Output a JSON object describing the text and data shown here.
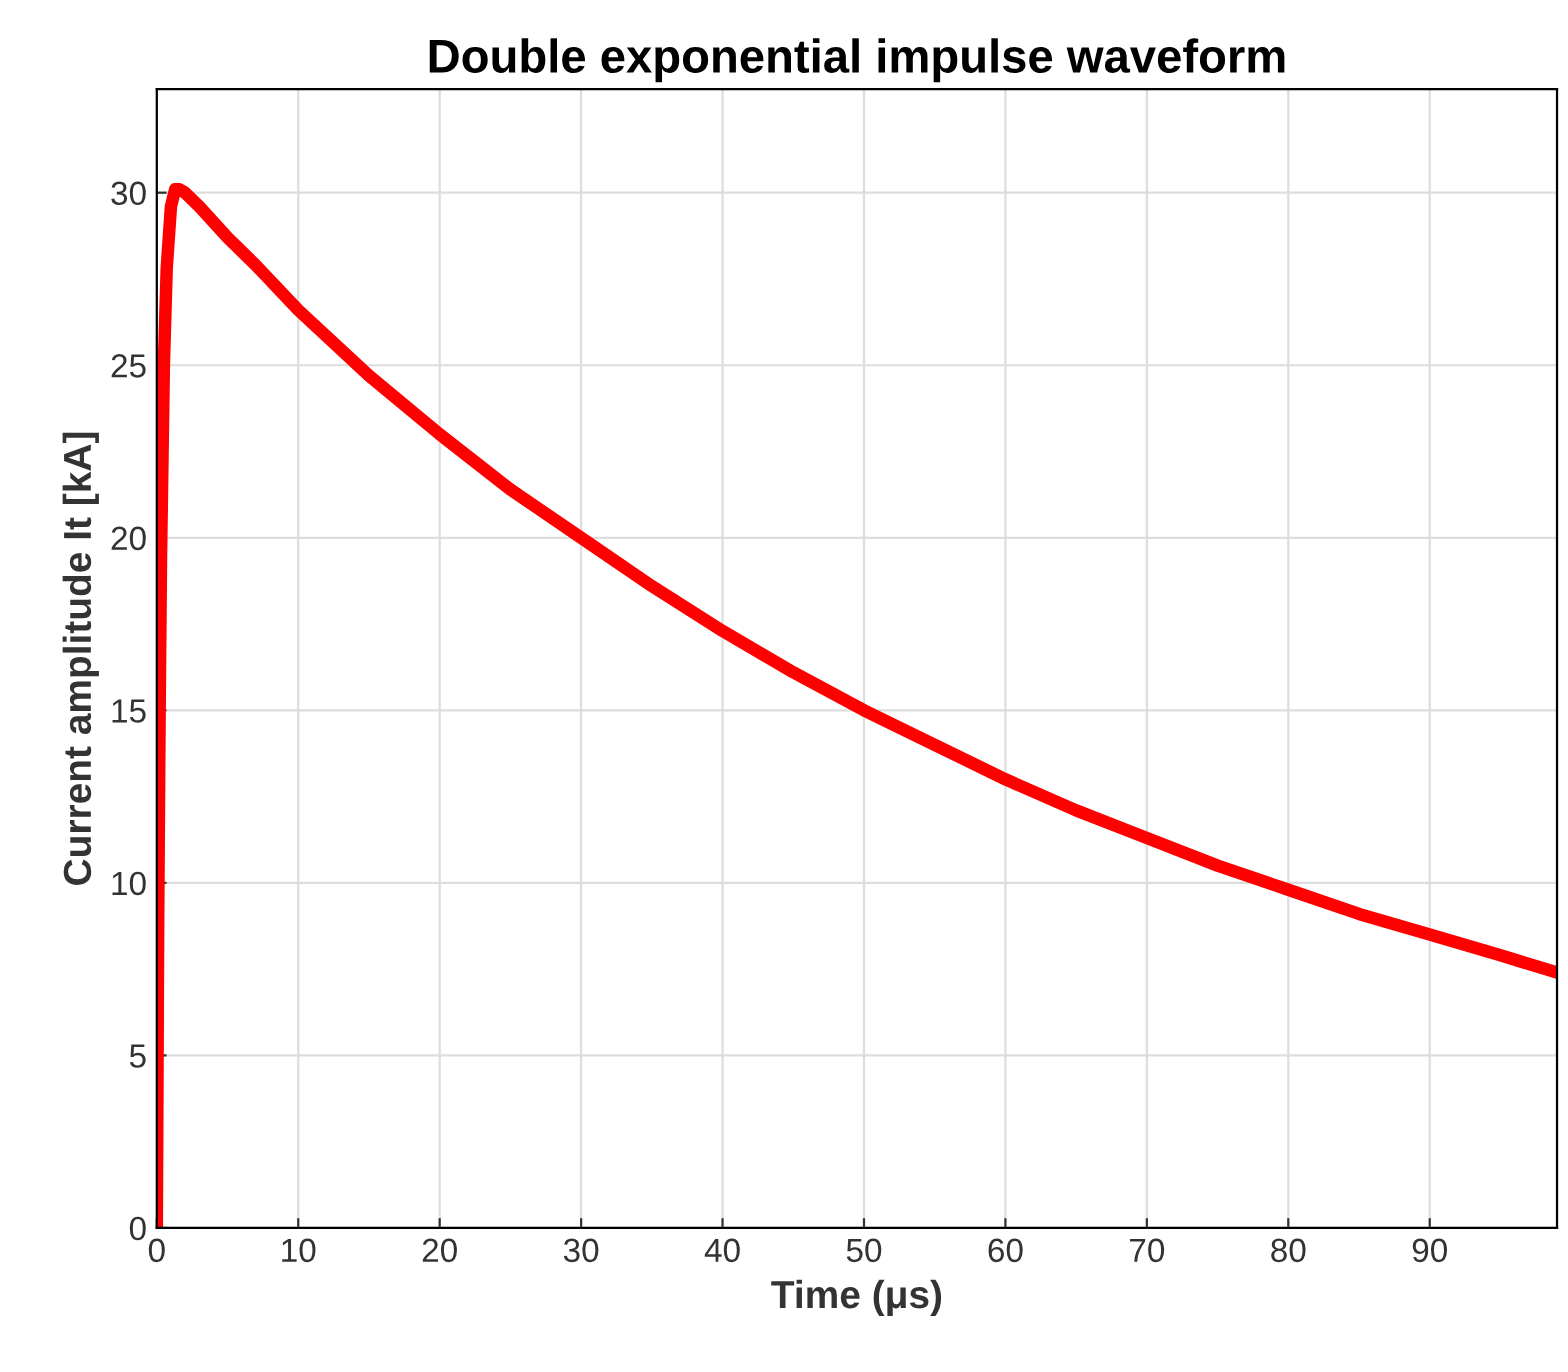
{
  "chart_data": {
    "type": "line",
    "title": "Double exponential impulse waveform",
    "xlabel": "Time (μs)",
    "ylabel": "Current amplitude It [kA]",
    "xlim": [
      0,
      99
    ],
    "ylim": [
      0,
      33
    ],
    "xticks": [
      0,
      10,
      20,
      30,
      40,
      50,
      60,
      70,
      80,
      90
    ],
    "yticks": [
      0,
      5,
      10,
      15,
      20,
      25,
      30
    ],
    "grid": true,
    "series": [
      {
        "color": "#ff0000",
        "x": [
          0,
          0.1,
          0.2,
          0.3,
          0.5,
          0.7,
          1,
          1.3,
          1.6,
          2,
          3,
          5,
          7,
          10,
          15,
          20,
          25,
          30,
          35,
          40,
          45,
          50,
          55,
          60,
          65,
          70,
          75,
          80,
          85,
          90,
          95,
          99
        ],
        "values": [
          0,
          9,
          15,
          19.5,
          25,
          27.8,
          29.6,
          30.1,
          30.1,
          30,
          29.6,
          28.7,
          27.9,
          26.6,
          24.7,
          23,
          21.4,
          20,
          18.6,
          17.3,
          16.1,
          15,
          14,
          13,
          12.1,
          11.3,
          10.5,
          9.8,
          9.1,
          8.5,
          7.9,
          7.4
        ]
      }
    ]
  }
}
